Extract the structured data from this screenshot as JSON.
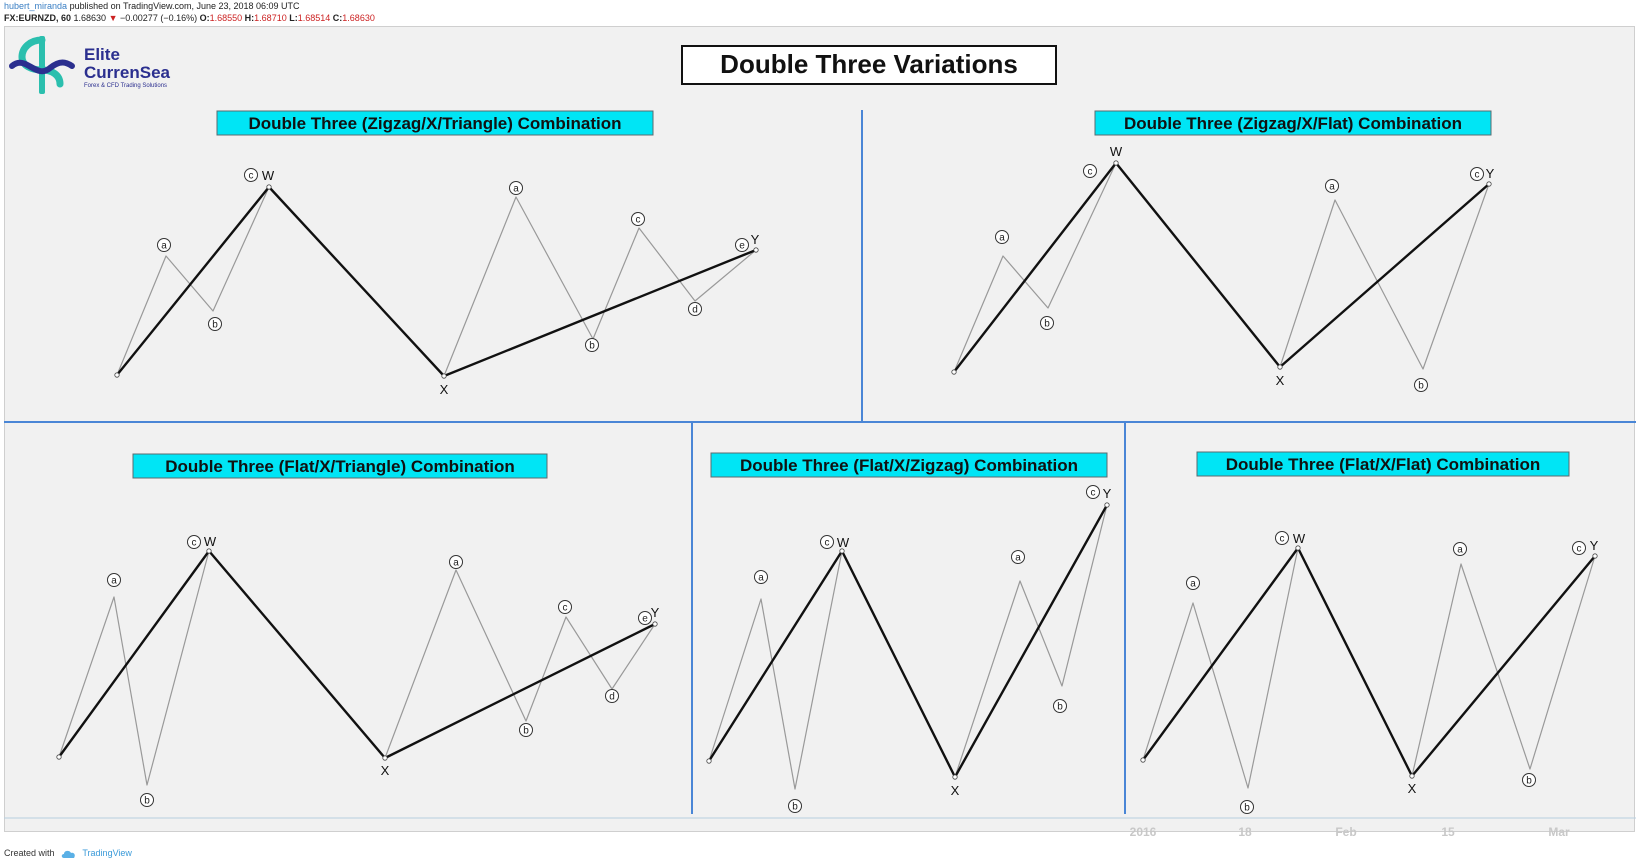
{
  "header": {
    "author": "hubert_miranda",
    "published": "published on TradingView.com, June 23, 2018 06:09 UTC",
    "symbol": "FX:EURNZD, 60",
    "price": "1.68630",
    "change_arrow": "▼",
    "change": "−0.00277 (−0.16%)",
    "o_label": "O:",
    "o_value": "1.68550",
    "h_label": "H:",
    "h_value": "1.68710",
    "l_label": "L:",
    "l_value": "1.68514",
    "c_label": "C:",
    "c_value": "1.68630"
  },
  "logo": {
    "name_line1": "Elite",
    "name_line2": "CurrenSea",
    "tagline": "Forex & CFD Trading Solutions",
    "colors": {
      "navy": "#2b2f8f",
      "teal": "#2bbfae"
    }
  },
  "main_title": "Double Three Variations",
  "panels": [
    {
      "title": "Double Three (Zigzag/X/Triangle) Combination"
    },
    {
      "title": "Double Three (Zigzag/X/Flat) Combination"
    },
    {
      "title": "Double Three (Flat/X/Triangle) Combination"
    },
    {
      "title": "Double Three (Flat/X/Zigzag) Combination"
    },
    {
      "title": "Double Three (Flat/X/Flat) Combination"
    }
  ],
  "wave_labels": {
    "a": "a",
    "b": "b",
    "c": "c",
    "d": "d",
    "e": "e",
    "W": "W",
    "X": "X",
    "Y": "Y"
  },
  "time_axis": [
    "2016",
    "18",
    "Feb",
    "15",
    "Mar"
  ],
  "footer": {
    "created_with": "Created with",
    "brand": "TradingView"
  },
  "colors": {
    "title_box": "#00e5f5",
    "divider": "#4a86d6",
    "thick_line": "#111111",
    "thin_line": "#999999",
    "chart_bg": "#f1f1f1"
  }
}
